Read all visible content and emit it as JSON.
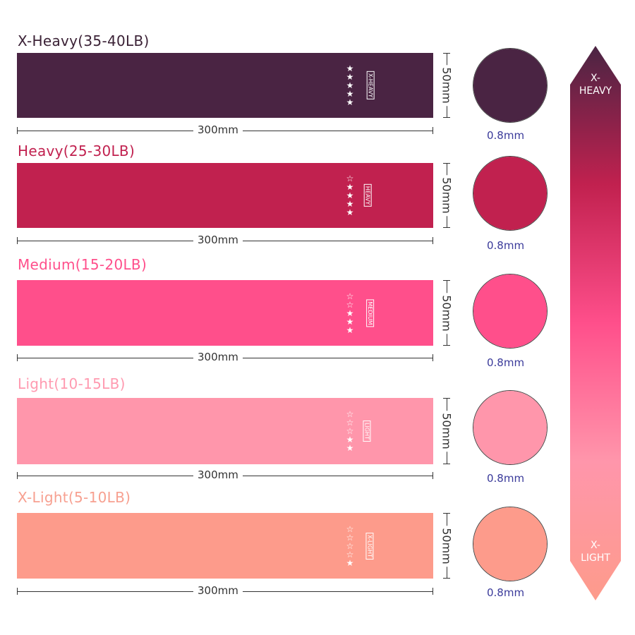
{
  "bands": [
    {
      "title": "X-Heavy(35-40LB)",
      "level": "X-HEAVY",
      "stars_filled": 5,
      "stars_total": 5,
      "color": "#4a2443",
      "title_color": "#3b2236",
      "width": "300mm",
      "height": "50mm",
      "thickness": "0.8mm"
    },
    {
      "title": "Heavy(25-30LB)",
      "level": "HEAVY",
      "stars_filled": 4,
      "stars_total": 5,
      "color": "#c1214f",
      "title_color": "#c1214f",
      "width": "300mm",
      "height": "50mm",
      "thickness": "0.8mm"
    },
    {
      "title": "Medium(15-20LB)",
      "level": "MEDIUM",
      "stars_filled": 3,
      "stars_total": 5,
      "color": "#ff4f8b",
      "title_color": "#ff4f8b",
      "width": "300mm",
      "height": "50mm",
      "thickness": "0.8mm"
    },
    {
      "title": "Light(10-15LB)",
      "level": "LIGHT",
      "stars_filled": 2,
      "stars_total": 5,
      "color": "#ff96ab",
      "title_color": "#ff9ab0",
      "width": "300mm",
      "height": "50mm",
      "thickness": "0.8mm"
    },
    {
      "title": "X-Light(5-10LB)",
      "level": "X-LIGHT",
      "stars_filled": 1,
      "stars_total": 5,
      "color": "#fd9b8b",
      "title_color": "#f7a090",
      "width": "300mm",
      "height": "50mm",
      "thickness": "0.8mm"
    }
  ],
  "scale": {
    "top_label": "X-\nHEAVY",
    "bottom_label": "X-\nLIGHT",
    "gradient": [
      "#4a2443",
      "#c1214f",
      "#ff4f8b",
      "#ff96ab",
      "#fd9b8b"
    ]
  }
}
